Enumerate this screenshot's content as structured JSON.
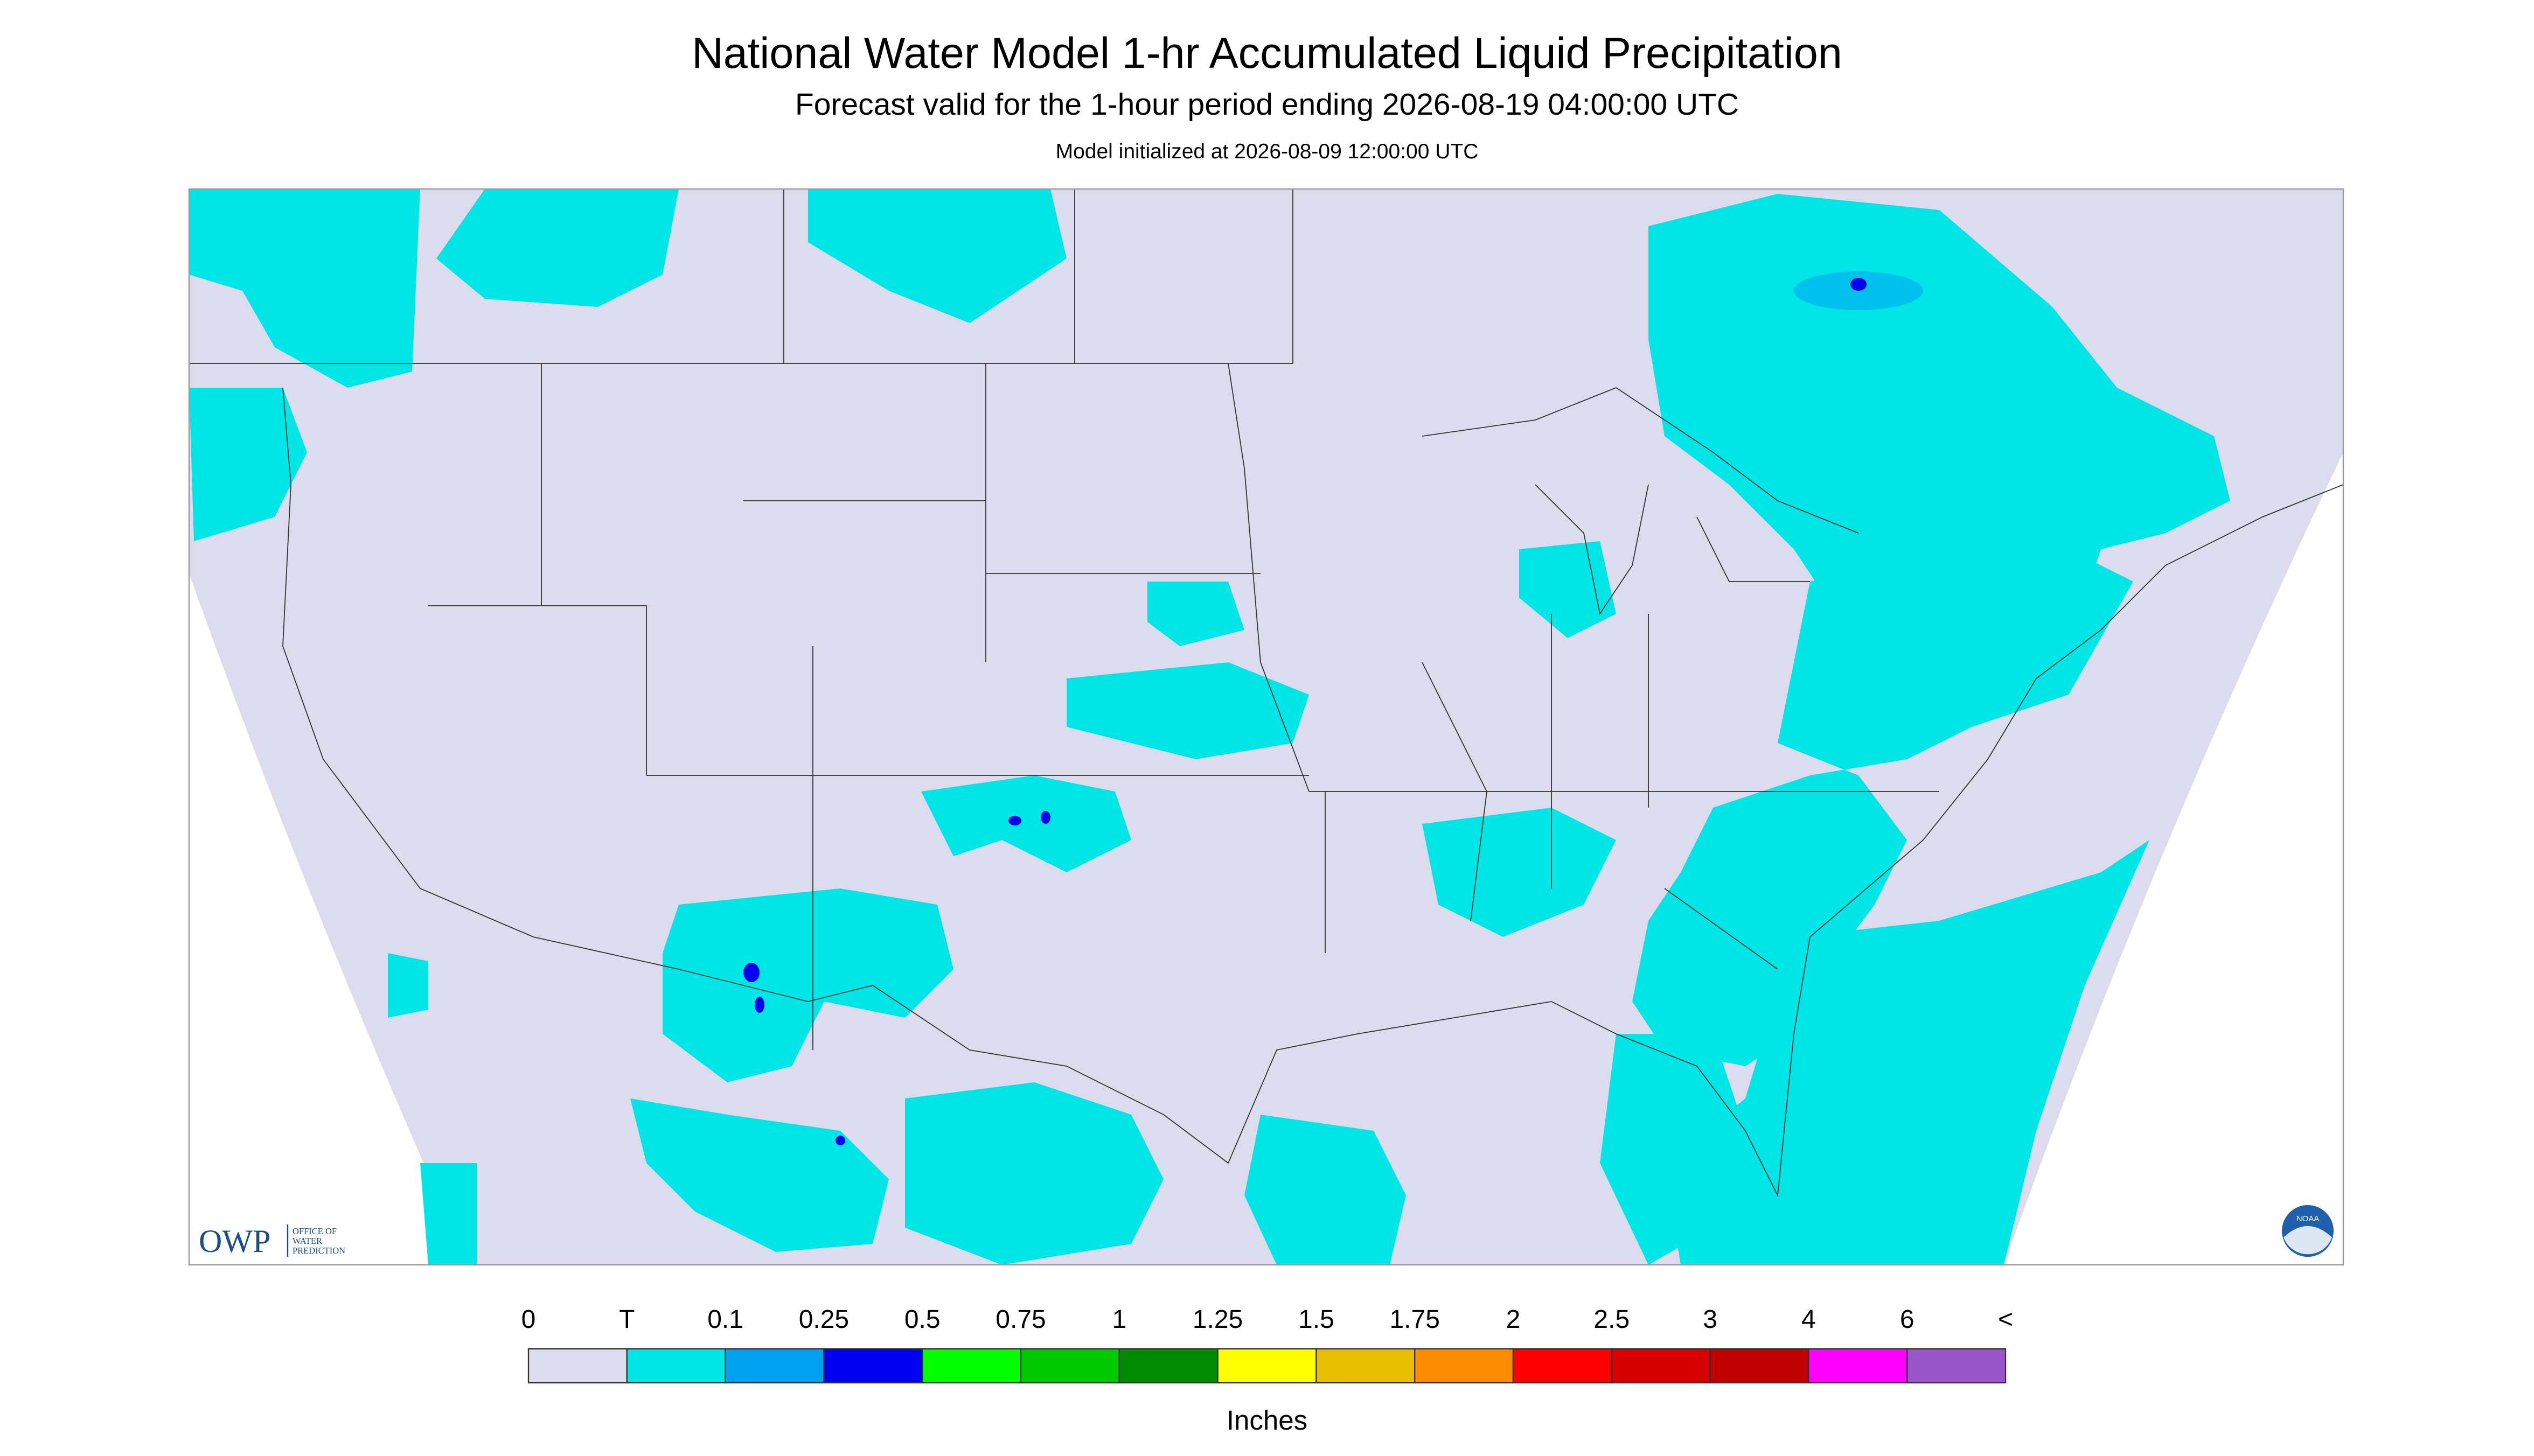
{
  "header": {
    "title": "National Water Model 1-hr Accumulated Liquid Precipitation",
    "subtitle": "Forecast valid for the 1-hour period ending 2026-08-19 04:00:00 UTC",
    "note": "Model initialized at 2026-08-09 12:00:00 UTC"
  },
  "logos": {
    "owp": "OWP",
    "owp_text": [
      "OFFICE OF",
      "WATER",
      "PREDICTION"
    ],
    "noaa": "NOAA"
  },
  "legend": {
    "labels": [
      "0",
      "T",
      "0.1",
      "0.25",
      "0.5",
      "0.75",
      "1",
      "1.25",
      "1.5",
      "1.75",
      "2",
      "2.5",
      "3",
      "4",
      "6",
      "<"
    ],
    "colors": [
      "#dcdcee",
      "#00e6e6",
      "#00a0f0",
      "#0000f0",
      "#00ff00",
      "#00c800",
      "#008c00",
      "#ffff00",
      "#e6be00",
      "#ff8c00",
      "#ff0000",
      "#d60000",
      "#c00000",
      "#ff00ff",
      "#9955c9"
    ],
    "unit": "Inches"
  }
}
